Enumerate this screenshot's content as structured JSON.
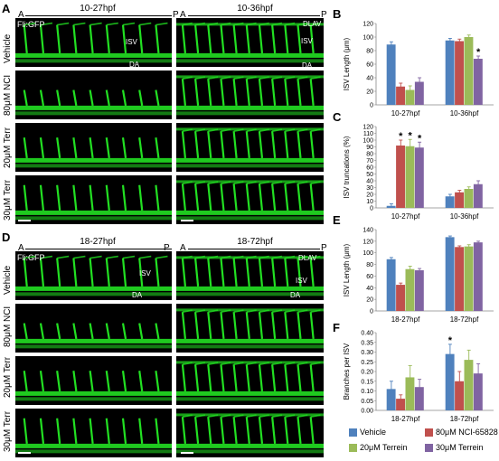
{
  "panel_letters": {
    "A": "A",
    "B": "B",
    "C": "C",
    "D": "D",
    "E": "E",
    "F": "F"
  },
  "image_panels": {
    "A": {
      "columns": [
        {
          "header": "10-27hpf",
          "left": "A",
          "right": "P"
        },
        {
          "header": "10-36hpf",
          "left": "A",
          "right": "P"
        }
      ],
      "rows": [
        "Vehicle",
        "80μM NCI",
        "20μM Terr",
        "30μM Terr"
      ],
      "marker": "Fli:GFP",
      "annotations": {
        "isv": "ISV",
        "da": "DA",
        "dlav": "DLAV"
      }
    },
    "D": {
      "columns": [
        {
          "header": "18-27hpf",
          "left": "A",
          "right": "P"
        },
        {
          "header": "18-72hpf",
          "left": "A",
          "right": "P"
        }
      ],
      "rows": [
        "Vehicle",
        "80μM NCI",
        "20μM Terr",
        "30μM Terr"
      ],
      "marker": "Fli:GFP",
      "annotations": {
        "isv": "ISV",
        "da": "DA",
        "dlav": "DLAV"
      }
    }
  },
  "colors": {
    "vehicle": "#4f81bd",
    "nci": "#c0504d",
    "terr20": "#9bbb59",
    "terr30": "#8064a2",
    "gfp": "#22e022"
  },
  "legend": [
    {
      "label": "Vehicle",
      "color": "#4f81bd"
    },
    {
      "label": "80μM NCI-65828",
      "color": "#c0504d"
    },
    {
      "label": "20μM Terrein",
      "color": "#9bbb59"
    },
    {
      "label": "30μM Terrein",
      "color": "#8064a2"
    }
  ],
  "chart_data": [
    {
      "id": "B",
      "type": "bar",
      "categories": [
        "10-27hpf",
        "10-36hpf"
      ],
      "series": [
        {
          "name": "Vehicle",
          "values": [
            89,
            95
          ],
          "errors": [
            4,
            3
          ]
        },
        {
          "name": "80μM NCI-65828",
          "values": [
            27,
            94
          ],
          "errors": [
            5,
            3
          ]
        },
        {
          "name": "20μM Terrein",
          "values": [
            22,
            100
          ],
          "errors": [
            6,
            3
          ]
        },
        {
          "name": "30μM Terrein",
          "values": [
            34,
            68
          ],
          "errors": [
            6,
            4
          ]
        }
      ],
      "ylabel": "ISV Length (μm)",
      "ylim": [
        0,
        120
      ],
      "yticks": [
        0,
        20,
        40,
        60,
        80,
        100,
        120
      ],
      "annotations": [
        {
          "text": "*",
          "category": 1,
          "series": 3
        }
      ]
    },
    {
      "id": "C",
      "type": "bar",
      "categories": [
        "10-27hpf",
        "10-36hpf"
      ],
      "series": [
        {
          "name": "Vehicle",
          "values": [
            3,
            17
          ],
          "errors": [
            3,
            3
          ]
        },
        {
          "name": "80μM NCI-65828",
          "values": [
            92,
            23
          ],
          "errors": [
            8,
            3
          ]
        },
        {
          "name": "20μM Terrein",
          "values": [
            91,
            28
          ],
          "errors": [
            10,
            3
          ]
        },
        {
          "name": "30μM Terrein",
          "values": [
            89,
            35
          ],
          "errors": [
            8,
            5
          ]
        }
      ],
      "ylabel": "ISV truncations (%)",
      "ylim": [
        0,
        120
      ],
      "yticks": [
        0,
        10,
        20,
        30,
        40,
        50,
        60,
        70,
        80,
        90,
        100,
        110,
        120
      ],
      "annotations": [
        {
          "text": "*",
          "category": 0,
          "series": 1
        },
        {
          "text": "*",
          "category": 0,
          "series": 2
        },
        {
          "text": "*",
          "category": 0,
          "series": 3
        }
      ]
    },
    {
      "id": "E",
      "type": "bar",
      "categories": [
        "18-27hpf",
        "18-72hpf"
      ],
      "series": [
        {
          "name": "Vehicle",
          "values": [
            89,
            127
          ],
          "errors": [
            3,
            2
          ]
        },
        {
          "name": "80μM NCI-65828",
          "values": [
            45,
            110
          ],
          "errors": [
            3,
            2
          ]
        },
        {
          "name": "20μM Terrein",
          "values": [
            72,
            111
          ],
          "errors": [
            5,
            3
          ]
        },
        {
          "name": "30μM Terrein",
          "values": [
            70,
            118
          ],
          "errors": [
            3,
            2
          ]
        }
      ],
      "ylabel": "ISV Length (μm)",
      "ylim": [
        0,
        140
      ],
      "yticks": [
        0,
        20,
        40,
        60,
        80,
        100,
        120,
        140
      ],
      "annotations": []
    },
    {
      "id": "F",
      "type": "bar",
      "categories": [
        "18-27hpf",
        "18-72hpf"
      ],
      "series": [
        {
          "name": "Vehicle",
          "values": [
            0.11,
            0.29
          ],
          "errors": [
            0.04,
            0.05
          ]
        },
        {
          "name": "80μM NCI-65828",
          "values": [
            0.06,
            0.15
          ],
          "errors": [
            0.02,
            0.05
          ]
        },
        {
          "name": "20μM Terrein",
          "values": [
            0.17,
            0.26
          ],
          "errors": [
            0.06,
            0.05
          ]
        },
        {
          "name": "30μM Terrein",
          "values": [
            0.12,
            0.19
          ],
          "errors": [
            0.04,
            0.05
          ]
        }
      ],
      "ylabel": "Branches per ISV",
      "ylim": [
        0,
        0.4
      ],
      "yticks": [
        "0.00",
        "0.05",
        "0.10",
        "0.15",
        "0.20",
        "0.25",
        "0.30",
        "0.35",
        "0.40"
      ],
      "annotations": [
        {
          "text": "*",
          "category": 1,
          "series": 0
        }
      ]
    }
  ]
}
